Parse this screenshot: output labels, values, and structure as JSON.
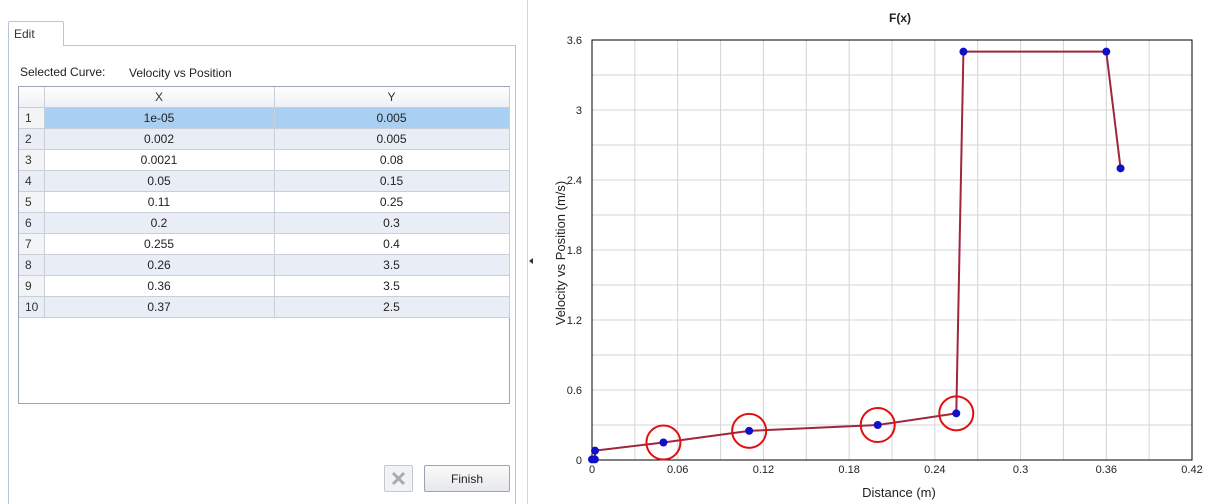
{
  "edit_tab": {
    "label": "Edit"
  },
  "selection": {
    "label": "Selected Curve:",
    "value": "Velocity vs Position"
  },
  "table": {
    "headers": [
      "",
      "X",
      "Y"
    ],
    "rows": [
      {
        "index": "1",
        "x": "1e-05",
        "y": "0.005"
      },
      {
        "index": "2",
        "x": "0.002",
        "y": "0.005"
      },
      {
        "index": "3",
        "x": "0.0021",
        "y": "0.08"
      },
      {
        "index": "4",
        "x": "0.05",
        "y": "0.15"
      },
      {
        "index": "5",
        "x": "0.11",
        "y": "0.25"
      },
      {
        "index": "6",
        "x": "0.2",
        "y": "0.3"
      },
      {
        "index": "7",
        "x": "0.255",
        "y": "0.4"
      },
      {
        "index": "8",
        "x": "0.26",
        "y": "3.5"
      },
      {
        "index": "9",
        "x": "0.36",
        "y": "3.5"
      },
      {
        "index": "10",
        "x": "0.37",
        "y": "2.5"
      }
    ],
    "selected_row": 1
  },
  "buttons": {
    "delete_icon": "x-icon",
    "finish_label": "Finish"
  },
  "chart_data": {
    "type": "line",
    "title": "F(x)",
    "xlabel": "Distance (m)",
    "ylabel": "Velocity vs Position (m/s)",
    "xlim": [
      0,
      0.42
    ],
    "ylim": [
      0,
      3.6
    ],
    "xticks": [
      "0",
      "0.06",
      "0.12",
      "0.18",
      "0.24",
      "0.3",
      "0.36",
      "0.42"
    ],
    "yticks": [
      "0",
      "0.6",
      "1.2",
      "1.8",
      "2.4",
      "3",
      "3.6"
    ],
    "grid": true,
    "series": [
      {
        "x": [
          1e-05,
          0.002,
          0.0021,
          0.05,
          0.11,
          0.2,
          0.255,
          0.26,
          0.36,
          0.37
        ],
        "y": [
          0.005,
          0.005,
          0.08,
          0.15,
          0.25,
          0.3,
          0.4,
          3.5,
          3.5,
          2.5
        ],
        "line_color": "#a0253f",
        "marker_color": "#1010c8"
      }
    ],
    "highlighted_points_x": [
      0.05,
      0.11,
      0.2,
      0.255
    ],
    "highlight_color": "#e01010"
  }
}
